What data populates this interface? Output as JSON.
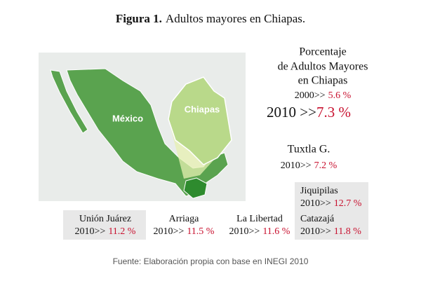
{
  "title": {
    "label": "Figura 1.",
    "text": "Adultos mayores en Chiapas."
  },
  "map": {
    "labels": [
      "México",
      "Chiapas"
    ]
  },
  "summary": {
    "heading": [
      "Porcentaje",
      "de Adultos Mayores",
      "en Chiapas"
    ],
    "rows": [
      {
        "label": "2000>>",
        "value": "5.6 %"
      },
      {
        "label": "2010 >>",
        "value": "7.3 %"
      }
    ]
  },
  "municipalities": [
    {
      "name": "Tuxtla G.",
      "label": "2010>>",
      "value": "7.2 %"
    },
    {
      "name": "Jiquipilas",
      "label": "2010>>",
      "value": "12.7 %"
    },
    {
      "name": "Catazajá",
      "label": "2010>>",
      "value": "11.8 %"
    },
    {
      "name": "Unión Juárez",
      "label": "2010>>",
      "value": "11.2 %"
    },
    {
      "name": "Arriaga",
      "label": "2010>>",
      "value": "11.5 %"
    },
    {
      "name": "La Libertad",
      "label": "2010>>",
      "value": "11.6 %"
    }
  ],
  "source": "Fuente: Elaboración propia con base en INEGI 2010"
}
